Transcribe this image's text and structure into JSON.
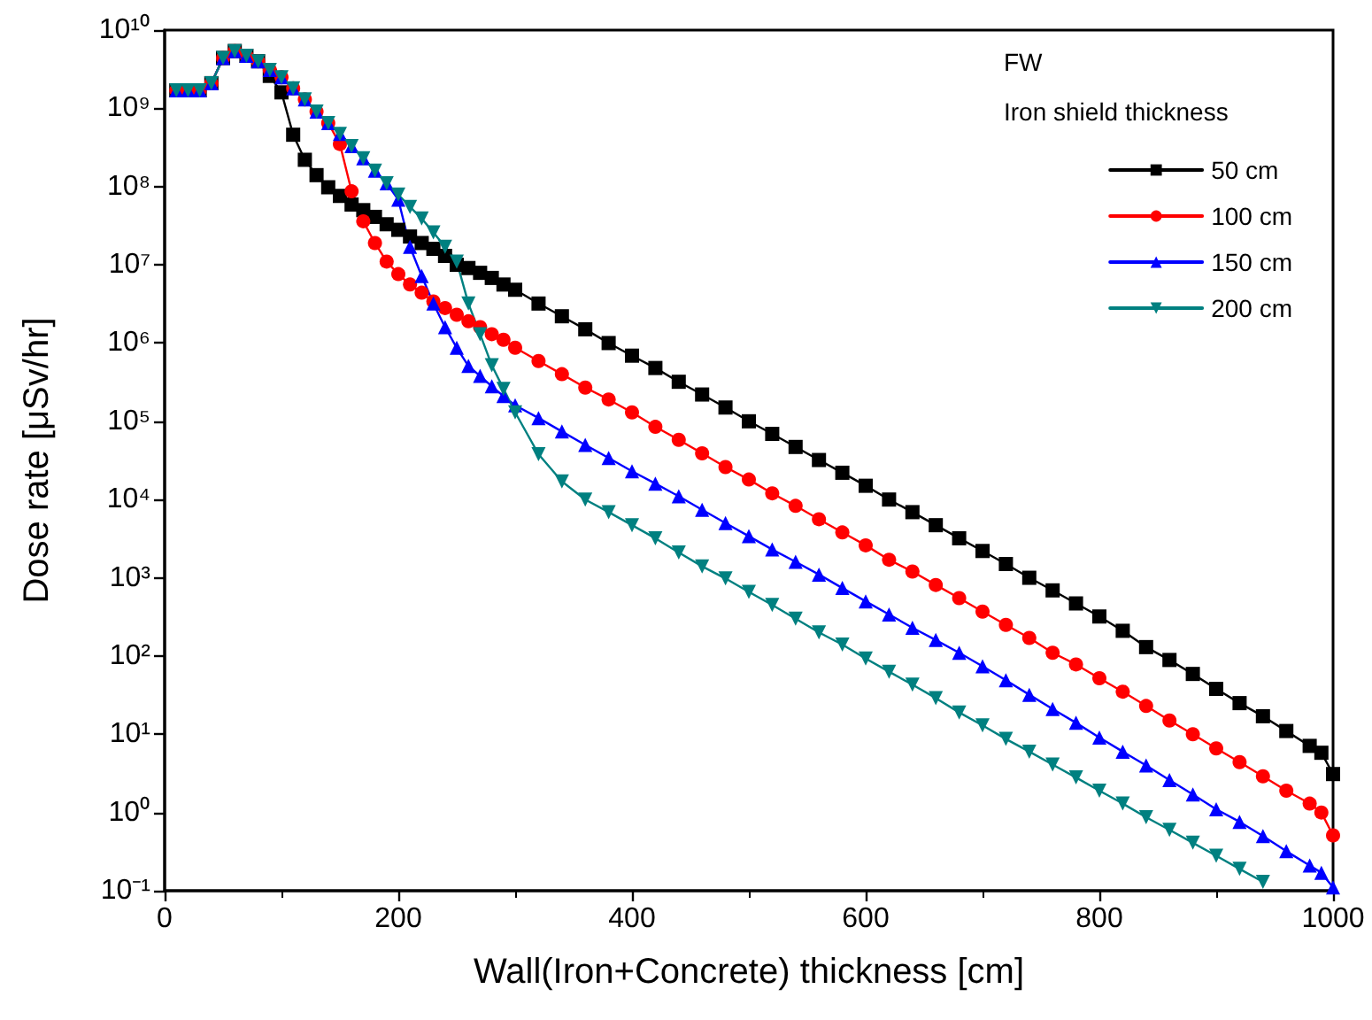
{
  "chart_data": {
    "type": "line",
    "xlabel": "Wall(Iron+Concrete) thickness [cm]",
    "ylabel": "Dose rate [μSv/hr]",
    "legend_title": "Iron shield thickness",
    "annotations": [
      "FW"
    ],
    "x": [
      10,
      20,
      30,
      40,
      50,
      60,
      70,
      80,
      90,
      100,
      110,
      120,
      130,
      140,
      150,
      160,
      170,
      180,
      190,
      200,
      210,
      220,
      230,
      240,
      250,
      260,
      270,
      280,
      290,
      300,
      320,
      340,
      360,
      380,
      400,
      420,
      440,
      460,
      480,
      500,
      520,
      540,
      560,
      580,
      600,
      620,
      640,
      660,
      680,
      700,
      720,
      740,
      760,
      780,
      800,
      820,
      840,
      860,
      880,
      900,
      920,
      940,
      960,
      980,
      990,
      1000
    ],
    "series": [
      {
        "name": "50 cm",
        "color": "#000000",
        "marker": "square",
        "values": [
          1700000000.0,
          1700000000.0,
          1700000000.0,
          2100000000.0,
          4400000000.0,
          5400000000.0,
          4700000000.0,
          4000000000.0,
          2600000000.0,
          1600000000.0,
          460000000.0,
          220000000.0,
          140000000.0,
          98000000.0,
          76000000.0,
          59000000.0,
          50000000.0,
          41000000.0,
          33000000.0,
          28000000.0,
          23000000.0,
          19000000.0,
          16000000.0,
          13000000.0,
          10000000.0,
          9100000.0,
          7900000.0,
          6800000.0,
          5600000.0,
          4800000.0,
          3200000.0,
          2200000.0,
          1500000.0,
          1000000.0,
          690000.0,
          480000.0,
          320000.0,
          220000.0,
          150000.0,
          100000.0,
          69000.0,
          47000.0,
          32000.0,
          22000.0,
          15000.0,
          10000.0,
          6900.0,
          4700.0,
          3200.0,
          2200.0,
          1500.0,
          1000.0,
          690,
          470,
          320,
          210,
          130,
          89,
          59,
          38,
          25,
          17,
          11,
          7.1,
          5.8,
          3.1
        ]
      },
      {
        "name": "100 cm",
        "color": "#ff0000",
        "marker": "circle",
        "values": [
          1700000000.0,
          1700000000.0,
          1700000000.0,
          2100000000.0,
          4400000000.0,
          5400000000.0,
          4700000000.0,
          4000000000.0,
          3100000000.0,
          2500000000.0,
          1800000000.0,
          1300000000.0,
          910000000.0,
          650000000.0,
          350000000.0,
          87000000.0,
          36000000.0,
          19000000.0,
          11000000.0,
          7600000.0,
          5600000.0,
          4400000.0,
          3400000.0,
          2800000.0,
          2300000.0,
          1900000.0,
          1600000.0,
          1300000.0,
          1100000.0,
          870000.0,
          590000.0,
          400000.0,
          270000.0,
          190000.0,
          130000.0,
          85000.0,
          58000.0,
          39000.0,
          26000.0,
          18000.0,
          12000.0,
          8300.0,
          5600.0,
          3800.0,
          2600.0,
          1700.0,
          1200.0,
          810,
          550,
          370,
          250,
          170,
          110,
          78,
          52,
          35,
          23,
          15,
          10,
          6.6,
          4.4,
          2.9,
          1.9,
          1.3,
          1.0,
          0.51
        ]
      },
      {
        "name": "150 cm",
        "color": "#0000ff",
        "marker": "triangle",
        "values": [
          1700000000.0,
          1700000000.0,
          1700000000.0,
          2100000000.0,
          4400000000.0,
          5400000000.0,
          4700000000.0,
          4000000000.0,
          3100000000.0,
          2500000000.0,
          1800000000.0,
          1300000000.0,
          910000000.0,
          650000000.0,
          470000000.0,
          330000000.0,
          230000000.0,
          160000000.0,
          110000000.0,
          68000000.0,
          17000000.0,
          7200000.0,
          3200000.0,
          1600000.0,
          870000.0,
          510000.0,
          380000.0,
          280000.0,
          210000.0,
          160000.0,
          110000.0,
          74000.0,
          50000.0,
          34000.0,
          23000.0,
          16000.0,
          11000.0,
          7400.0,
          5000.0,
          3400.0,
          2300.0,
          1600.0,
          1100.0,
          740,
          500,
          340,
          230,
          160,
          110,
          74,
          49,
          32,
          21,
          14,
          9.1,
          6.0,
          4.0,
          2.6,
          1.7,
          1.1,
          0.76,
          0.5,
          0.32,
          0.21,
          0.17,
          0.11
        ]
      },
      {
        "name": "200 cm",
        "color": "#008080",
        "marker": "triangle-down",
        "values": [
          1700000000.0,
          1700000000.0,
          1700000000.0,
          2100000000.0,
          4400000000.0,
          5400000000.0,
          4700000000.0,
          4000000000.0,
          3100000000.0,
          2500000000.0,
          1800000000.0,
          1300000000.0,
          910000000.0,
          650000000.0,
          470000000.0,
          330000000.0,
          230000000.0,
          160000000.0,
          110000000.0,
          79000000.0,
          55000000.0,
          39000000.0,
          26000000.0,
          17000000.0,
          11000000.0,
          3200000.0,
          1300000.0,
          520000.0,
          260000.0,
          130000.0,
          38000.0,
          17000.0,
          10000.0,
          6900.0,
          4700.0,
          3200.0,
          2100.0,
          1400.0,
          980,
          660,
          450,
          300,
          200,
          140,
          93,
          63,
          43,
          29,
          19,
          13,
          8.7,
          6.0,
          4.1,
          2.8,
          1.9,
          1.3,
          0.87,
          0.6,
          0.41,
          0.28,
          0.19,
          0.13,
          null,
          null,
          null,
          null
        ]
      }
    ],
    "xlim": [
      0,
      1000
    ],
    "xticks": [
      0,
      200,
      400,
      600,
      800,
      1000
    ],
    "ylim": [
      0.1,
      10000000000
    ],
    "yticks": [
      {
        "value": 0.1,
        "label": "10⁻¹"
      },
      {
        "value": 1,
        "label": "10⁰"
      },
      {
        "value": 10,
        "label": "10¹"
      },
      {
        "value": 100,
        "label": "10²"
      },
      {
        "value": 1000,
        "label": "10³"
      },
      {
        "value": 10000,
        "label": "10⁴"
      },
      {
        "value": 100000,
        "label": "10⁵"
      },
      {
        "value": 1000000,
        "label": "10⁶"
      },
      {
        "value": 10000000,
        "label": "10⁷"
      },
      {
        "value": 100000000,
        "label": "10⁸"
      },
      {
        "value": 1000000000,
        "label": "10⁹"
      },
      {
        "value": 10000000000,
        "label": "10¹⁰"
      }
    ],
    "log": "y",
    "grid": false,
    "legend": "top right",
    "line_style": "solid"
  }
}
